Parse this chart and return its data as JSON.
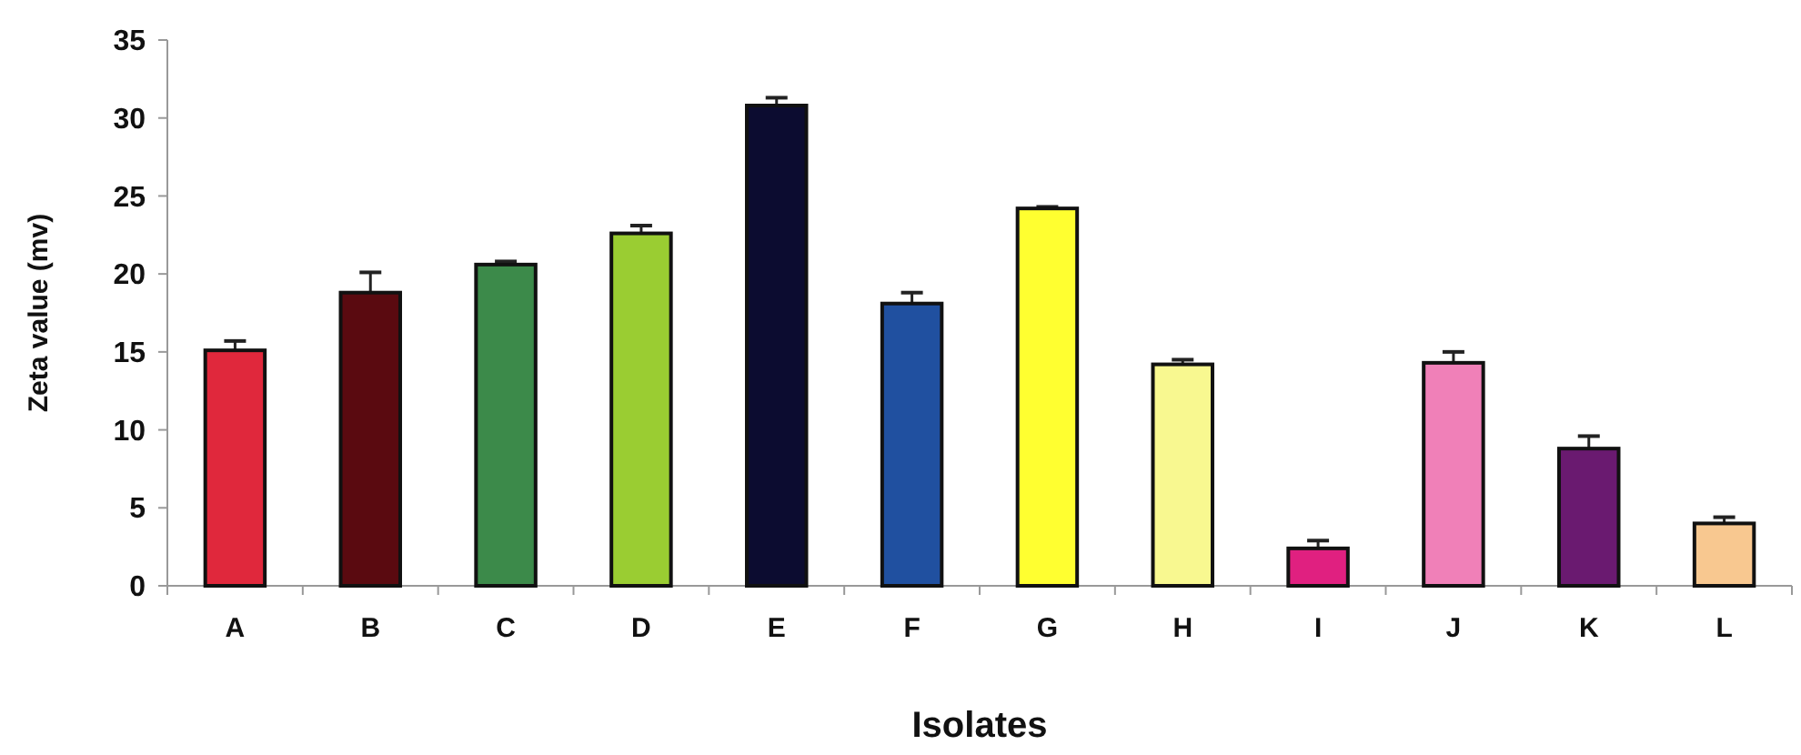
{
  "chart_data": {
    "type": "bar",
    "xlabel": "Isolates",
    "ylabel": "Zeta value (mv)",
    "categories": [
      "A",
      "B",
      "C",
      "D",
      "E",
      "F",
      "G",
      "H",
      "I",
      "J",
      "K",
      "L"
    ],
    "values": [
      15.1,
      18.8,
      20.6,
      22.6,
      30.8,
      18.1,
      24.2,
      14.2,
      2.4,
      14.3,
      8.8,
      4.0
    ],
    "errors": [
      0.6,
      1.3,
      0.2,
      0.5,
      0.5,
      0.7,
      0.1,
      0.3,
      0.5,
      0.7,
      0.8,
      0.4
    ],
    "colors": [
      "#e0283c",
      "#5a0a10",
      "#3c8a4a",
      "#9acd32",
      "#0c0c30",
      "#2050a0",
      "#ffff30",
      "#f8f890",
      "#e02080",
      "#f080b8",
      "#6a1a70",
      "#f8c890"
    ],
    "ylim": [
      0,
      35
    ],
    "yticks": [
      0,
      5,
      10,
      15,
      20,
      25,
      30,
      35
    ],
    "grid": false
  }
}
